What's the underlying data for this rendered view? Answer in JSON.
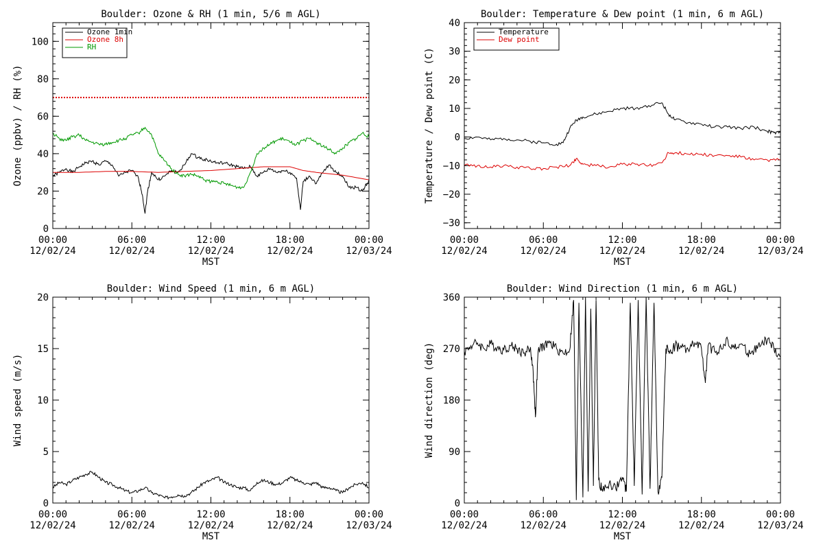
{
  "chart_data": [
    {
      "type": "line",
      "title": "Boulder: Ozone & RH (1 min, 5/6 m AGL)",
      "xlabel": "MST",
      "ylabel": "Ozone (ppbv) / RH (%)",
      "xlim": [
        0,
        24
      ],
      "ylim": [
        0,
        110
      ],
      "x_ticks": [
        {
          "time": "00:00",
          "date": "12/02/24"
        },
        {
          "time": "06:00",
          "date": "12/02/24"
        },
        {
          "time": "12:00",
          "date": "12/02/24"
        },
        {
          "time": "18:00",
          "date": "12/02/24"
        },
        {
          "time": "00:00",
          "date": "12/03/24"
        }
      ],
      "y_ticks": [
        "0",
        "20",
        "40",
        "60",
        "80",
        "100"
      ],
      "grid": false,
      "legend": "top-left",
      "reference_lines": [
        {
          "y": 70,
          "color": "#dd0000",
          "style": "dotted"
        }
      ],
      "series": [
        {
          "name": "Ozone 1min",
          "color": "#000000",
          "x": [
            0,
            0.5,
            1,
            1.5,
            2,
            2.5,
            3,
            3.5,
            4,
            4.5,
            5,
            5.5,
            6,
            6.5,
            6.8,
            7,
            7.2,
            7.5,
            8,
            8.5,
            9,
            9.5,
            10,
            10.5,
            11,
            11.5,
            12,
            12.5,
            13,
            13.5,
            14,
            14.5,
            15,
            15.5,
            16,
            16.5,
            17,
            17.5,
            18,
            18.5,
            18.8,
            19,
            19.5,
            20,
            20.5,
            21,
            21.5,
            22,
            22.5,
            23,
            23.5,
            24
          ],
          "y": [
            28,
            30,
            32,
            30,
            33,
            35,
            36,
            34,
            36,
            34,
            28,
            30,
            31,
            27,
            18,
            8,
            20,
            30,
            26,
            28,
            31,
            30,
            34,
            40,
            38,
            37,
            36,
            35,
            35,
            34,
            33,
            32,
            33,
            28,
            30,
            32,
            30,
            31,
            30,
            27,
            10,
            25,
            28,
            24,
            30,
            34,
            30,
            28,
            22,
            22,
            20,
            26
          ]
        },
        {
          "name": "Ozone 8h",
          "color": "#dd0000",
          "x": [
            0,
            2,
            4,
            6,
            8,
            10,
            12,
            14,
            16,
            18,
            19,
            20,
            22,
            24
          ],
          "y": [
            30,
            30,
            30.5,
            30.5,
            30,
            30.5,
            31,
            32,
            33,
            33,
            31,
            30,
            28.5,
            26
          ]
        },
        {
          "name": "RH",
          "color": "#009900",
          "x": [
            0,
            0.5,
            1,
            1.5,
            2,
            2.5,
            3,
            3.5,
            4,
            4.5,
            5,
            5.5,
            6,
            6.5,
            7,
            7.5,
            8,
            8.5,
            9,
            9.5,
            10,
            10.5,
            11,
            11.5,
            12,
            12.5,
            13,
            13.5,
            14,
            14.5,
            15,
            15.5,
            16,
            16.5,
            17,
            17.5,
            18,
            18.5,
            19,
            19.5,
            20,
            20.5,
            21,
            21.5,
            22,
            22.5,
            23,
            23.5,
            24
          ],
          "y": [
            51,
            48,
            47,
            49,
            50,
            47,
            46,
            45,
            45,
            46,
            47,
            48,
            50,
            51,
            54,
            50,
            40,
            36,
            32,
            29,
            28,
            29,
            28,
            26,
            25,
            25,
            24,
            23,
            22,
            22,
            30,
            40,
            43,
            45,
            47,
            48,
            46,
            45,
            47,
            48,
            46,
            44,
            42,
            40,
            43,
            46,
            48,
            51,
            49
          ]
        }
      ]
    },
    {
      "type": "line",
      "title": "Boulder: Temperature & Dew point (1 min, 6 m AGL)",
      "xlabel": "MST",
      "ylabel": "Temperature / Dew point (C)",
      "xlim": [
        0,
        24
      ],
      "ylim": [
        -32,
        40
      ],
      "x_ticks": [
        {
          "time": "00:00",
          "date": "12/02/24"
        },
        {
          "time": "06:00",
          "date": "12/02/24"
        },
        {
          "time": "12:00",
          "date": "12/02/24"
        },
        {
          "time": "18:00",
          "date": "12/02/24"
        },
        {
          "time": "00:00",
          "date": "12/03/24"
        }
      ],
      "y_ticks": [
        "−30",
        "−20",
        "−10",
        "0",
        "10",
        "20",
        "30",
        "40"
      ],
      "grid": false,
      "legend": "top-left",
      "series": [
        {
          "name": "Temperature",
          "color": "#000000",
          "x": [
            0,
            1,
            2,
            3,
            4,
            5,
            6,
            7,
            7.5,
            8,
            8.5,
            9,
            10,
            11,
            12,
            13,
            14,
            15,
            15.5,
            16,
            17,
            18,
            19,
            20,
            21,
            22,
            23,
            23.5,
            24
          ],
          "y": [
            -0.5,
            0,
            -1,
            -0.5,
            -1,
            -1.5,
            -2,
            -2.5,
            -2,
            3,
            6,
            7,
            8,
            9,
            10,
            10,
            11,
            12,
            8,
            6,
            5,
            4.5,
            3.5,
            3.5,
            3,
            3.5,
            2,
            1.5,
            1.5
          ]
        },
        {
          "name": "Dew point",
          "color": "#dd0000",
          "x": [
            0,
            1,
            2,
            3,
            4,
            5,
            6,
            7,
            8,
            8.5,
            9,
            10,
            11,
            12,
            13,
            14,
            15,
            15.5,
            16,
            17,
            18,
            19,
            20,
            21,
            22,
            23,
            24
          ],
          "y": [
            -10,
            -10,
            -10.5,
            -10,
            -10.5,
            -11,
            -11,
            -10.5,
            -10,
            -7.5,
            -9.5,
            -10,
            -10.5,
            -9.5,
            -9.5,
            -10,
            -9,
            -5.5,
            -5.5,
            -6,
            -6,
            -6.5,
            -6.5,
            -7,
            -8,
            -8,
            -8
          ]
        }
      ]
    },
    {
      "type": "line",
      "title": "Boulder: Wind Speed (1 min, 6 m AGL)",
      "xlabel": "MST",
      "ylabel": "Wind speed (m/s)",
      "xlim": [
        0,
        24
      ],
      "ylim": [
        0,
        20
      ],
      "x_ticks": [
        {
          "time": "00:00",
          "date": "12/02/24"
        },
        {
          "time": "06:00",
          "date": "12/02/24"
        },
        {
          "time": "12:00",
          "date": "12/02/24"
        },
        {
          "time": "18:00",
          "date": "12/02/24"
        },
        {
          "time": "00:00",
          "date": "12/03/24"
        }
      ],
      "y_ticks": [
        "0",
        "5",
        "10",
        "15",
        "20"
      ],
      "grid": false,
      "series": [
        {
          "name": "",
          "color": "#000000",
          "x": [
            0,
            0.5,
            1,
            1.5,
            2,
            2.5,
            3,
            3.5,
            4,
            4.5,
            5,
            5.5,
            6,
            6.5,
            7,
            7.5,
            8,
            8.5,
            9,
            9.5,
            10,
            10.5,
            11,
            11.5,
            12,
            12.5,
            13,
            13.5,
            14,
            14.5,
            15,
            15.5,
            16,
            16.5,
            17,
            17.5,
            18,
            18.5,
            19,
            19.5,
            20,
            20.5,
            21,
            21.5,
            22,
            22.5,
            23,
            23.5,
            24
          ],
          "y": [
            1.5,
            2,
            1.8,
            2.2,
            2.5,
            2.8,
            3,
            2.5,
            2,
            1.8,
            1.5,
            1.2,
            1,
            1.2,
            1.5,
            1,
            0.8,
            0.5,
            0.6,
            0.8,
            0.7,
            1,
            1.5,
            2,
            2.2,
            2.5,
            2,
            1.8,
            1.5,
            1.5,
            1.2,
            2,
            2.2,
            2,
            1.8,
            2,
            2.5,
            2.2,
            2,
            1.8,
            2,
            1.5,
            1.5,
            1.2,
            1,
            1.5,
            1.8,
            2,
            1.5
          ]
        }
      ]
    },
    {
      "type": "line",
      "title": "Boulder: Wind Direction (1 min, 6 m AGL)",
      "xlabel": "MST",
      "ylabel": "Wind direction (deg)",
      "xlim": [
        0,
        24
      ],
      "ylim": [
        0,
        360
      ],
      "x_ticks": [
        {
          "time": "00:00",
          "date": "12/02/24"
        },
        {
          "time": "06:00",
          "date": "12/02/24"
        },
        {
          "time": "12:00",
          "date": "12/02/24"
        },
        {
          "time": "18:00",
          "date": "12/02/24"
        },
        {
          "time": "00:00",
          "date": "12/03/24"
        }
      ],
      "y_ticks": [
        "0",
        "90",
        "180",
        "270",
        "360"
      ],
      "grid": false,
      "series": [
        {
          "name": "",
          "color": "#000000",
          "x": [
            0,
            0.5,
            1,
            1.5,
            2,
            2.5,
            3,
            3.5,
            4,
            4.5,
            5,
            5.2,
            5.4,
            5.6,
            6,
            6.5,
            7,
            7.5,
            8,
            8.3,
            8.5,
            8.7,
            9,
            9.2,
            9.4,
            9.6,
            9.8,
            10,
            10.2,
            10.5,
            11,
            11.5,
            12,
            12.3,
            12.6,
            12.9,
            13.2,
            13.5,
            13.8,
            14.1,
            14.4,
            14.7,
            15,
            15.3,
            15.6,
            16,
            16.5,
            17,
            17.5,
            18,
            18.3,
            18.5,
            19,
            19.5,
            20,
            20.5,
            21,
            21.5,
            22,
            22.5,
            23,
            23.5,
            24
          ],
          "y": [
            265,
            275,
            280,
            270,
            278,
            272,
            268,
            275,
            270,
            262,
            270,
            240,
            150,
            265,
            275,
            280,
            270,
            262,
            268,
            355,
            5,
            350,
            10,
            360,
            20,
            340,
            30,
            355,
            40,
            20,
            35,
            25,
            45,
            20,
            350,
            30,
            355,
            15,
            360,
            25,
            350,
            20,
            45,
            270,
            265,
            275,
            272,
            268,
            280,
            270,
            210,
            275,
            265,
            270,
            285,
            270,
            278,
            262,
            268,
            275,
            285,
            270,
            255
          ]
        }
      ]
    }
  ]
}
